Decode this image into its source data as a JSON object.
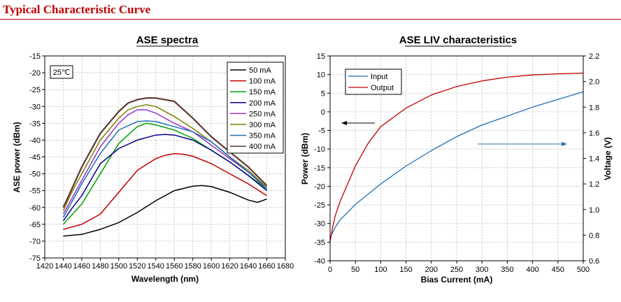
{
  "page": {
    "title": "Typical Characteristic Curve"
  },
  "chart_data": [
    {
      "type": "line",
      "title": "ASE spectra",
      "xlabel": "Wavelength (nm)",
      "ylabel": "ASE power (dBm)",
      "xlim": [
        1420,
        1680
      ],
      "ylim": [
        -75,
        -15
      ],
      "xticks": [
        1420,
        1440,
        1460,
        1480,
        1500,
        1520,
        1540,
        1560,
        1580,
        1600,
        1620,
        1640,
        1660,
        1680
      ],
      "yticks": [
        -75,
        -70,
        -65,
        -60,
        -55,
        -50,
        -45,
        -40,
        -35,
        -30,
        -25,
        -20,
        -15
      ],
      "grid": true,
      "legend_position": "top-right",
      "annotation": "25℃",
      "colors": {
        "50 mA": "#000000",
        "100 mA": "#c00000",
        "150 mA": "#00a000",
        "200 mA": "#00008b",
        "250 mA": "#9932cc",
        "300 mA": "#808000",
        "350 mA": "#1f6fb5",
        "400 mA": "#5c3a32"
      },
      "series": [
        {
          "name": "50 mA",
          "color": "#000000",
          "x": [
            1440,
            1460,
            1480,
            1500,
            1520,
            1540,
            1560,
            1580,
            1590,
            1600,
            1620,
            1640,
            1650,
            1660
          ],
          "y": [
            -68.5,
            -68,
            -66.5,
            -64.5,
            -61.5,
            -58,
            -55,
            -53.7,
            -53.5,
            -53.8,
            -55.5,
            -57.8,
            -58.5,
            -57.5
          ]
        },
        {
          "name": "100 mA",
          "color": "#c00000",
          "x": [
            1440,
            1460,
            1480,
            1500,
            1520,
            1540,
            1550,
            1560,
            1570,
            1580,
            1600,
            1620,
            1640,
            1660
          ],
          "y": [
            -66.5,
            -65,
            -62,
            -55.5,
            -49,
            -45.5,
            -44.5,
            -44,
            -44.2,
            -44.8,
            -47,
            -50,
            -53,
            -56.5
          ]
        },
        {
          "name": "150 mA",
          "color": "#00a000",
          "x": [
            1440,
            1450,
            1460,
            1480,
            1500,
            1520,
            1530,
            1540,
            1560,
            1580,
            1600,
            1620,
            1640,
            1660
          ],
          "y": [
            -65,
            -62,
            -59,
            -50,
            -41,
            -36,
            -35,
            -35.5,
            -37,
            -39.5,
            -43,
            -46.5,
            -50.5,
            -54.5
          ]
        },
        {
          "name": "200 mA",
          "color": "#00008b",
          "x": [
            1440,
            1450,
            1460,
            1480,
            1500,
            1520,
            1540,
            1550,
            1560,
            1580,
            1600,
            1620,
            1640,
            1660
          ],
          "y": [
            -64,
            -60,
            -56.5,
            -47,
            -42.5,
            -40,
            -38.5,
            -38.3,
            -38.5,
            -40,
            -43,
            -46.5,
            -50.5,
            -55
          ]
        },
        {
          "name": "250 mA",
          "color": "#9932cc",
          "x": [
            1440,
            1450,
            1460,
            1480,
            1500,
            1510,
            1520,
            1530,
            1540,
            1560,
            1580,
            1600,
            1620,
            1640,
            1660
          ],
          "y": [
            -62,
            -57,
            -52,
            -42,
            -35,
            -32.5,
            -31,
            -31,
            -32,
            -35,
            -37.5,
            -41.5,
            -45.5,
            -49.5,
            -54
          ]
        },
        {
          "name": "300 mA",
          "color": "#808000",
          "x": [
            1440,
            1450,
            1460,
            1480,
            1500,
            1510,
            1520,
            1530,
            1540,
            1560,
            1580,
            1600,
            1620,
            1640,
            1660
          ],
          "y": [
            -61,
            -55,
            -50,
            -40,
            -33.5,
            -31,
            -30,
            -29.5,
            -30,
            -33,
            -36.5,
            -40.5,
            -45,
            -49,
            -54
          ]
        },
        {
          "name": "350 mA",
          "color": "#1f6fb5",
          "x": [
            1440,
            1450,
            1460,
            1480,
            1500,
            1520,
            1530,
            1540,
            1560,
            1580,
            1600,
            1620,
            1640,
            1660
          ],
          "y": [
            -63,
            -58,
            -53,
            -44,
            -37,
            -34.5,
            -34.3,
            -34.5,
            -36,
            -37.5,
            -40.5,
            -45,
            -49.5,
            -54.5
          ]
        },
        {
          "name": "400 mA",
          "color": "#5c3a32",
          "x": [
            1440,
            1450,
            1460,
            1480,
            1500,
            1510,
            1520,
            1530,
            1540,
            1550,
            1560,
            1570,
            1580,
            1600,
            1620,
            1640,
            1660
          ],
          "y": [
            -60,
            -54,
            -48,
            -38,
            -31.5,
            -29,
            -28,
            -27.5,
            -27.5,
            -28,
            -28.5,
            -31,
            -33.5,
            -39,
            -43.5,
            -48,
            -53.5
          ]
        }
      ]
    },
    {
      "type": "line",
      "title": "ASE LIV characteristics",
      "xlabel": "Bias Current (mA)",
      "ylabel": "Power (dBm)",
      "y2label": "Voltage (V)",
      "xlim": [
        0,
        500
      ],
      "ylim": [
        -40,
        15
      ],
      "y2lim": [
        0.6,
        2.2
      ],
      "xticks": [
        0,
        50,
        100,
        150,
        200,
        250,
        300,
        350,
        400,
        450,
        500
      ],
      "yticks": [
        -40,
        -35,
        -30,
        -25,
        -20,
        -15,
        -10,
        -5,
        0,
        5,
        10,
        15
      ],
      "y2ticks": [
        0.6,
        0.8,
        1.0,
        1.2,
        1.4,
        1.6,
        1.8,
        2.0,
        2.2
      ],
      "y2ticklabels": [
        "0.6",
        "0.8",
        "1.0",
        "1.2",
        "1.4",
        "1.6",
        "1.8",
        "2.0",
        "2.2"
      ],
      "grid": true,
      "legend_position": "top-left",
      "series": [
        {
          "name": "Input",
          "axis": "right",
          "color": "#1f6fb5",
          "x": [
            0,
            5,
            10,
            20,
            50,
            100,
            150,
            200,
            250,
            300,
            350,
            400,
            450,
            500
          ],
          "y": [
            0.78,
            0.82,
            0.86,
            0.92,
            1.04,
            1.2,
            1.34,
            1.46,
            1.57,
            1.66,
            1.73,
            1.8,
            1.86,
            1.92
          ]
        },
        {
          "name": "Output",
          "axis": "left",
          "color": "#c00000",
          "x": [
            0,
            5,
            10,
            20,
            50,
            75,
            100,
            150,
            200,
            250,
            300,
            350,
            400,
            450,
            500
          ],
          "y": [
            -35,
            -31,
            -28,
            -24,
            -14.5,
            -8.5,
            -4,
            1,
            4.5,
            6.8,
            8.3,
            9.3,
            9.9,
            10.2,
            10.4
          ]
        }
      ]
    }
  ]
}
